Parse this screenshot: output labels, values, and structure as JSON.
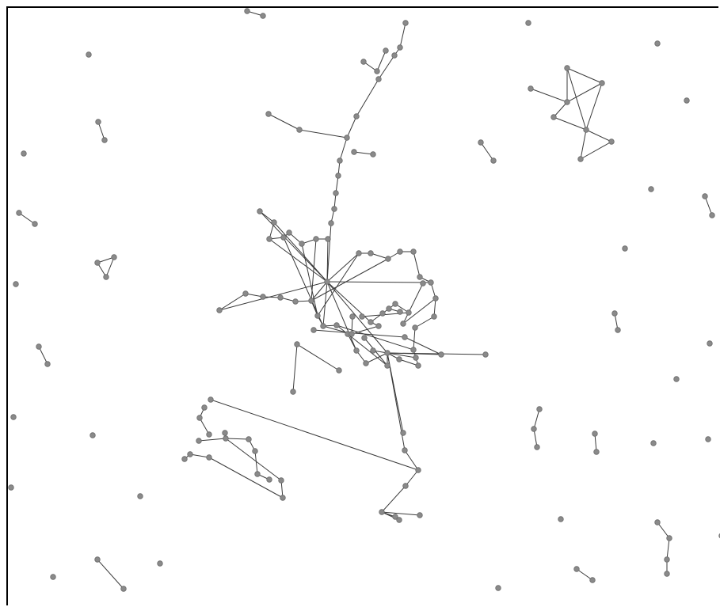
{
  "colors": {
    "node_fill": "#8a8a8a",
    "node_stroke": "#6b6b6b",
    "edge": "#3a3a3a",
    "background": "#ffffff",
    "frame": "#000000"
  }
}
